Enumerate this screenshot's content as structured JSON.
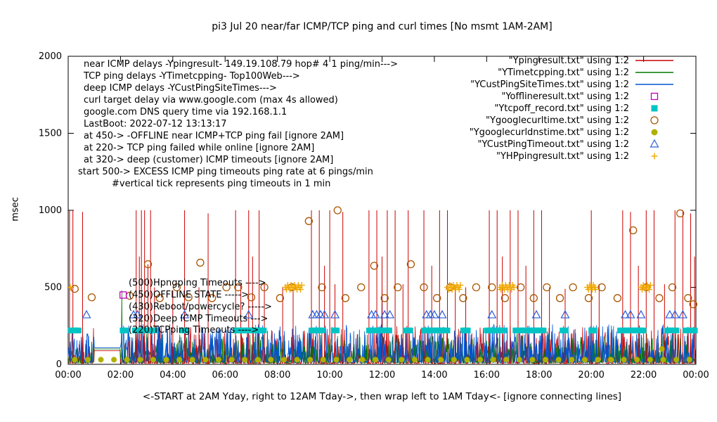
{
  "chart_data": {
    "type": "line",
    "title": "pi3 Jul 20 near/far ICMP/TCP ping and curl times [No msmt 1AM-2AM]",
    "xlabel": "<-START at 2AM Yday, right to 12AM Tday->, then wrap left to 1AM Tday<- [ignore connecting lines]",
    "ylabel": "msec",
    "xlim": [
      0,
      24
    ],
    "ylim": [
      0,
      2000
    ],
    "yticks": [
      0,
      500,
      1000,
      1500,
      2000
    ],
    "xticks": [
      {
        "label": "00:00",
        "h": 0
      },
      {
        "label": "02:00",
        "h": 2
      },
      {
        "label": "04:00",
        "h": 4
      },
      {
        "label": "06:00",
        "h": 6
      },
      {
        "label": "08:00",
        "h": 8
      },
      {
        "label": "10:00",
        "h": 10
      },
      {
        "label": "12:00",
        "h": 12
      },
      {
        "label": "14:00",
        "h": 14
      },
      {
        "label": "16:00",
        "h": 16
      },
      {
        "label": "18:00",
        "h": 18
      },
      {
        "label": "20:00",
        "h": 20
      },
      {
        "label": "22:00",
        "h": 22
      },
      {
        "label": "00:00",
        "h": 24
      }
    ],
    "legend_position": "top-right-inside",
    "grid": false,
    "legend": [
      {
        "label": "\"Ypingresult.txt\" using 1:2",
        "type": "line",
        "color": "#cc0000"
      },
      {
        "label": "\"YTimetcpping.txt\" using 1:2",
        "type": "line",
        "color": "#007700"
      },
      {
        "label": "\"YCustPingSiteTimes.txt\" using 1:2",
        "type": "line",
        "color": "#0055d4"
      },
      {
        "label": "\"Yofflineresult.txt\" using 1:2",
        "type": "open-square",
        "color": "#c000c0"
      },
      {
        "label": "\"Ytcpoff_record.txt\" using 1:2",
        "type": "filled-square",
        "color": "#00c4c4"
      },
      {
        "label": "\"Ygooglecurltime.txt\" using 1:2",
        "type": "open-circle",
        "color": "#aa5500"
      },
      {
        "label": "\"Ygooglecurldnstime.txt\" using 1:2",
        "type": "filled-circle",
        "color": "#b0b000"
      },
      {
        "label": "\"YCustPingTimeout.txt\" using 1:2",
        "type": "open-triangle",
        "color": "#2b5fd9"
      },
      {
        "label": "\"YHPpingresult.txt\" using 1:2",
        "type": "plus",
        "color": "#f0a800"
      }
    ],
    "info_lines": [
      {
        "t": "near ICMP delays -Ypingresult- 149.19.108.79 hop# 4 1 ping/min--->",
        "i": 22
      },
      {
        "t": "TCP ping delays -YTimetcpping- Top100Web--->",
        "i": 22
      },
      {
        "t": "deep ICMP delays -YCustPingSiteTimes--->",
        "i": 22
      },
      {
        "t": "curl target delay via www.google.com (max 4s allowed)",
        "i": 22
      },
      {
        "t": "google.com DNS query time via 192.168.1.1",
        "i": 22
      },
      {
        "t": "LastBoot: 2022-07-12 13:13:17",
        "i": 22
      },
      {
        "t": "at 450-> -OFFLINE near ICMP+TCP ping fail [ignore 2AM]",
        "i": 22
      },
      {
        "t": "at 220-> TCP ping failed while online [ignore 2AM]",
        "i": 22
      },
      {
        "t": "at 320-> deep (customer) ICMP timeouts [ignore 2AM]",
        "i": 22
      },
      {
        "t": "start 500-> EXCESS ICMP ping timeouts ping rate at 6 pings/min",
        "i": 14
      },
      {
        "t": "#vertical tick represents ping timeouts in 1 min",
        "i": 62
      }
    ],
    "annotations": [
      {
        "t": "(500)Hpngping Timeouts ---->",
        "y": 406
      },
      {
        "t": "(450)OFFLINE STATE ----->",
        "y": 423
      },
      {
        "t": "(430)Reboot/powercycle? ----->",
        "y": 440
      },
      {
        "t": "(320)Deep ICMP Timeouts --->",
        "y": 457
      },
      {
        "t": "(220)TCPping Timeouts ---->",
        "y": 473
      }
    ],
    "series": {
      "red_line": {
        "color": "#cc0000",
        "noise": {
          "seed": 11,
          "min": 5,
          "max": 250,
          "pow": 4,
          "flat": 88
        },
        "overrides": []
      },
      "green_line": {
        "color": "#007700",
        "noise": {
          "seed": 22,
          "min": 8,
          "max": 200,
          "pow": 3,
          "flat": 100
        },
        "overrides": [
          [
            123,
            480
          ]
        ]
      },
      "blue_line": {
        "color": "#0055d4",
        "noise": {
          "seed": 33,
          "min": 10,
          "max": 260,
          "pow": 3,
          "flat": 108
        },
        "overrides": [
          [
            720,
            560
          ]
        ]
      },
      "red_spikes": [
        [
          0.05,
          1000
        ],
        [
          0.18,
          1000
        ],
        [
          0.55,
          990
        ],
        [
          2.6,
          1000
        ],
        [
          2.72,
          700
        ],
        [
          2.8,
          1000
        ],
        [
          2.92,
          1000
        ],
        [
          3.05,
          650
        ],
        [
          3.15,
          1000
        ],
        [
          3.3,
          500
        ],
        [
          4.0,
          480
        ],
        [
          4.45,
          1000
        ],
        [
          5.0,
          500
        ],
        [
          5.35,
          980
        ],
        [
          6.4,
          1000
        ],
        [
          6.6,
          520
        ],
        [
          6.9,
          1000
        ],
        [
          7.05,
          700
        ],
        [
          7.3,
          1000
        ],
        [
          7.5,
          520
        ],
        [
          8.2,
          500
        ],
        [
          8.6,
          490
        ],
        [
          9.3,
          1000
        ],
        [
          9.6,
          1000
        ],
        [
          9.8,
          640
        ],
        [
          10.0,
          1000
        ],
        [
          10.2,
          520
        ],
        [
          10.5,
          990
        ],
        [
          11.5,
          1000
        ],
        [
          11.8,
          1000
        ],
        [
          12.0,
          700
        ],
        [
          12.2,
          1000
        ],
        [
          12.5,
          1000
        ],
        [
          12.8,
          520
        ],
        [
          13.0,
          1000
        ],
        [
          13.6,
          1000
        ],
        [
          13.9,
          640
        ],
        [
          14.2,
          1000
        ],
        [
          14.5,
          1000
        ],
        [
          14.8,
          510
        ],
        [
          15.2,
          500
        ],
        [
          16.1,
          1000
        ],
        [
          16.4,
          1000
        ],
        [
          16.6,
          700
        ],
        [
          16.9,
          1000
        ],
        [
          17.2,
          1000
        ],
        [
          17.5,
          640
        ],
        [
          17.8,
          1000
        ],
        [
          18.1,
          1000
        ],
        [
          18.4,
          500
        ],
        [
          19.0,
          490
        ],
        [
          20.0,
          1000
        ],
        [
          20.3,
          520
        ],
        [
          21.2,
          1000
        ],
        [
          21.5,
          990
        ],
        [
          21.8,
          640
        ],
        [
          22.1,
          1000
        ],
        [
          22.4,
          1000
        ],
        [
          22.8,
          520
        ],
        [
          23.2,
          1000
        ],
        [
          23.5,
          1000
        ],
        [
          23.8,
          980
        ],
        [
          23.95,
          700
        ]
      ],
      "offline_squares": [
        [
          2.1,
          450
        ]
      ],
      "tcpoff_squares": {
        "value": 220,
        "step": 0.06,
        "segments": [
          [
            0.1,
            0.45
          ],
          [
            2.08,
            2.2
          ],
          [
            2.55,
            3.35
          ],
          [
            4.35,
            4.55
          ],
          [
            6.4,
            7.5
          ],
          [
            9.3,
            9.75
          ],
          [
            10.15,
            10.3
          ],
          [
            11.5,
            12.3
          ],
          [
            12.9,
            13.1
          ],
          [
            13.6,
            14.5
          ],
          [
            15.1,
            15.3
          ],
          [
            16.0,
            16.7
          ],
          [
            17.1,
            18.2
          ],
          [
            18.9,
            19.05
          ],
          [
            20.0,
            20.15
          ],
          [
            21.1,
            22.0
          ],
          [
            22.9,
            23.3
          ],
          [
            23.6,
            23.98
          ]
        ]
      },
      "curl_circles": [
        [
          0.25,
          490
        ],
        [
          0.9,
          435
        ],
        [
          2.35,
          445
        ],
        [
          3.05,
          650
        ],
        [
          3.5,
          430
        ],
        [
          4.15,
          500
        ],
        [
          4.6,
          435
        ],
        [
          5.05,
          660
        ],
        [
          5.5,
          430
        ],
        [
          6.05,
          500
        ],
        [
          6.5,
          500
        ],
        [
          7.0,
          435
        ],
        [
          7.5,
          500
        ],
        [
          8.1,
          430
        ],
        [
          8.55,
          500
        ],
        [
          9.2,
          930
        ],
        [
          9.7,
          500
        ],
        [
          10.3,
          1000
        ],
        [
          10.6,
          430
        ],
        [
          11.2,
          500
        ],
        [
          11.7,
          640
        ],
        [
          12.1,
          430
        ],
        [
          12.6,
          500
        ],
        [
          13.1,
          650
        ],
        [
          13.6,
          500
        ],
        [
          14.1,
          430
        ],
        [
          14.6,
          500
        ],
        [
          15.1,
          430
        ],
        [
          15.6,
          500
        ],
        [
          16.2,
          500
        ],
        [
          16.7,
          430
        ],
        [
          17.3,
          500
        ],
        [
          17.8,
          430
        ],
        [
          18.3,
          500
        ],
        [
          18.8,
          430
        ],
        [
          19.3,
          500
        ],
        [
          19.9,
          430
        ],
        [
          20.4,
          500
        ],
        [
          21.0,
          430
        ],
        [
          21.6,
          870
        ],
        [
          22.1,
          500
        ],
        [
          22.6,
          430
        ],
        [
          23.1,
          500
        ],
        [
          23.4,
          980
        ],
        [
          23.7,
          430
        ],
        [
          23.9,
          390
        ]
      ],
      "dns_dots": {
        "value": 30,
        "hours": [
          0.25,
          0.75,
          1.25,
          1.75,
          2.25,
          2.75,
          3.25,
          3.75,
          4.25,
          4.75,
          5.25,
          5.75,
          6.25,
          6.75,
          7.25,
          7.75,
          8.25,
          8.75,
          9.25,
          9.75,
          10.25,
          10.75,
          11.25,
          11.75,
          12.25,
          12.75,
          13.25,
          13.75,
          14.25,
          14.75,
          15.25,
          15.75,
          16.25,
          16.75,
          17.25,
          17.75,
          18.25,
          18.75,
          19.25,
          19.75,
          20.25,
          20.75,
          21.25,
          21.75,
          22.25,
          22.75,
          23.25,
          23.75
        ],
        "extra": [
          [
            22.7,
            100
          ]
        ]
      },
      "timeout_triangles": {
        "value": 320,
        "hours": [
          0.7,
          2.5,
          2.65,
          4.45,
          6.9,
          9.35,
          9.5,
          9.65,
          9.8,
          10.2,
          11.6,
          11.75,
          12.1,
          12.3,
          13.7,
          13.85,
          14.0,
          14.3,
          16.2,
          17.9,
          19.0,
          21.3,
          21.5,
          21.9,
          23.0,
          23.2,
          23.5
        ]
      },
      "hp_plus": {
        "value": 500,
        "step": 0.045,
        "segments": [
          [
            8.3,
            8.95
          ],
          [
            14.5,
            15.0
          ],
          [
            16.5,
            17.05
          ],
          [
            19.85,
            20.2
          ],
          [
            21.9,
            22.3
          ]
        ],
        "singles": [
          [
            0.08,
            500
          ]
        ]
      }
    }
  }
}
